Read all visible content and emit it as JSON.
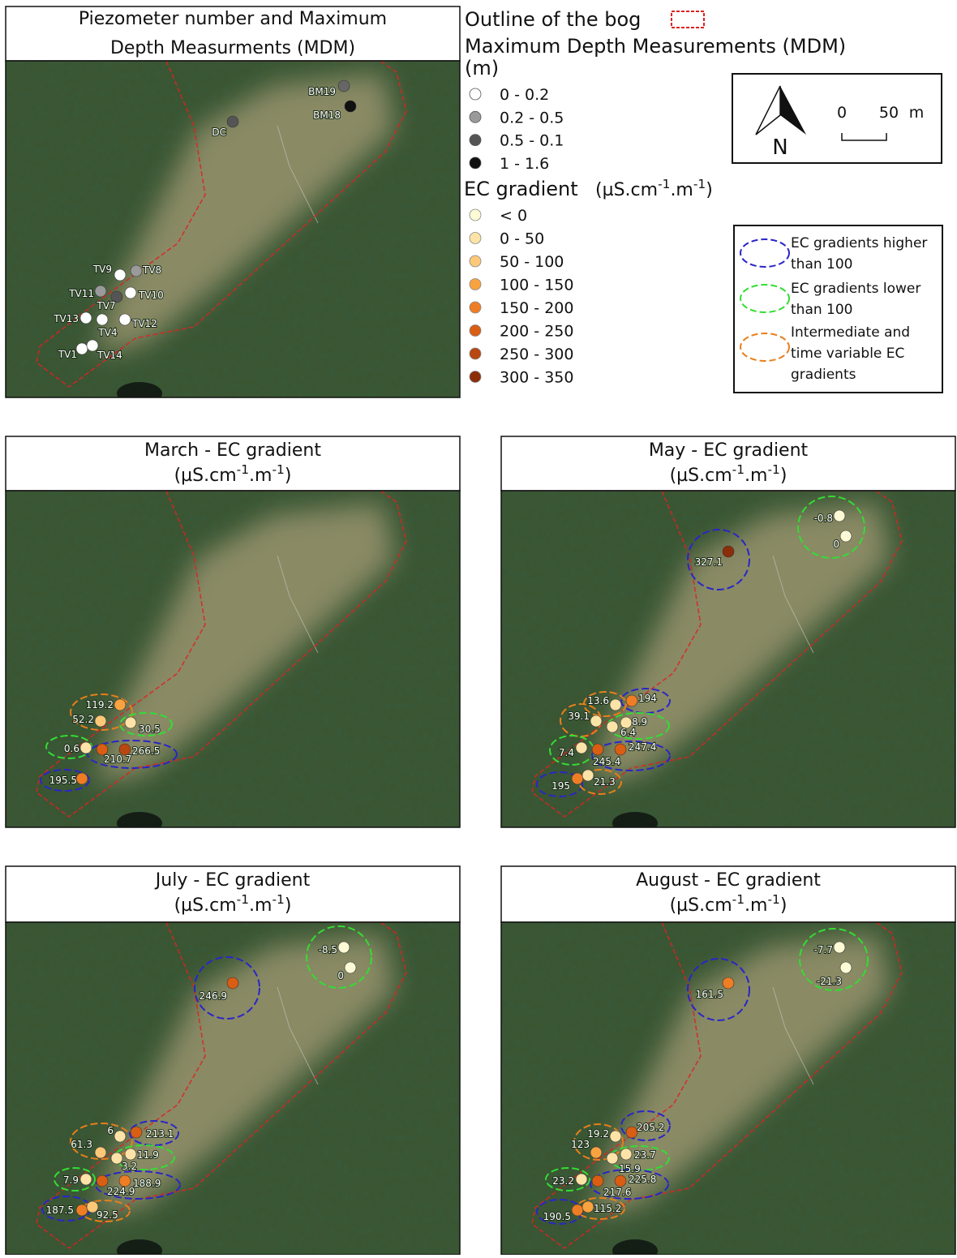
{
  "panels": [
    {
      "title_lines": [
        "Piezometer number and Maximum",
        "Depth Measurments (MDM)"
      ],
      "points": [
        {
          "label": "BM19",
          "color": "#666666"
        },
        {
          "label": "BM18",
          "color": "#111111"
        },
        {
          "label": "DC",
          "color": "#555555"
        },
        {
          "label": "TV9",
          "color": "#ffffff"
        },
        {
          "label": "TV8",
          "color": "#9a9a9a"
        },
        {
          "label": "TV11",
          "color": "#9a9a9a"
        },
        {
          "label": "TV10",
          "color": "#ffffff"
        },
        {
          "label": "TV7",
          "color": "#555555"
        },
        {
          "label": "TV13",
          "color": "#ffffff"
        },
        {
          "label": "TV4",
          "color": "#ffffff"
        },
        {
          "label": "TV12",
          "color": "#ffffff"
        },
        {
          "label": "TV1",
          "color": "#ffffff"
        },
        {
          "label": "TV14",
          "color": "#ffffff"
        }
      ]
    },
    {
      "title": "March - EC gradient",
      "unit": [
        "(µS.cm",
        "-1",
        ".m",
        "-1",
        ")"
      ],
      "points": [
        {
          "value": 119.2,
          "color": "#f9a340"
        },
        {
          "value": 52.2,
          "color": "#fdc877"
        },
        {
          "value": 30.5,
          "color": "#fde3a7"
        },
        {
          "value": 0.6,
          "color": "#fde3a7"
        },
        {
          "value": 210.7,
          "color": "#d95d12"
        },
        {
          "value": 266.5,
          "color": "#b94710"
        },
        {
          "value": 195.5,
          "color": "#ef7d24"
        }
      ]
    },
    {
      "title": "May - EC gradient",
      "unit": [
        "(µS.cm",
        "-1",
        ".m",
        "-1",
        ")"
      ],
      "points": [
        {
          "value": -0.8,
          "color": "#fdfbd6"
        },
        {
          "value": 0,
          "color": "#fdfbd6"
        },
        {
          "value": 327.1,
          "color": "#8c2d0a"
        },
        {
          "value": 13.6,
          "color": "#fde3a7"
        },
        {
          "value": 194,
          "color": "#ef7d24"
        },
        {
          "value": 39.1,
          "color": "#fde3a7"
        },
        {
          "value": 8.9,
          "color": "#fde3a7"
        },
        {
          "value": 6.4,
          "color": "#fde3a7"
        },
        {
          "value": 7.4,
          "color": "#fde3a7"
        },
        {
          "value": 245.4,
          "color": "#d95d12"
        },
        {
          "value": 247.4,
          "color": "#d95d12"
        },
        {
          "value": 195,
          "color": "#ef7d24"
        },
        {
          "value": 21.3,
          "color": "#fde3a7"
        }
      ]
    },
    {
      "title": "July - EC gradient",
      "unit": [
        "(µS.cm",
        "-1",
        ".m",
        "-1",
        ")"
      ],
      "points": [
        {
          "value": -8.5,
          "color": "#fdfbd6"
        },
        {
          "value": 0,
          "color": "#fdfbd6"
        },
        {
          "value": 246.9,
          "color": "#d95d12"
        },
        {
          "value": 6,
          "color": "#fde3a7"
        },
        {
          "value": 213.1,
          "color": "#d95d12"
        },
        {
          "value": 61.3,
          "color": "#fdc877"
        },
        {
          "value": 11.9,
          "color": "#fde3a7"
        },
        {
          "value": 3.2,
          "color": "#fde3a7"
        },
        {
          "value": 7.9,
          "color": "#fde3a7"
        },
        {
          "value": 224.9,
          "color": "#d95d12"
        },
        {
          "value": 188.9,
          "color": "#ef7d24"
        },
        {
          "value": 187.5,
          "color": "#ef7d24"
        },
        {
          "value": 92.5,
          "color": "#fdc877"
        }
      ]
    },
    {
      "title": "August - EC gradient",
      "unit": [
        "(µS.cm",
        "-1",
        ".m",
        "-1",
        ")"
      ],
      "points": [
        {
          "value": -7.7,
          "color": "#fdfbd6"
        },
        {
          "value": -21.3,
          "color": "#fdfbd6"
        },
        {
          "value": 161.5,
          "color": "#ef7d24"
        },
        {
          "value": 19.2,
          "color": "#fde3a7"
        },
        {
          "value": 205.2,
          "color": "#d95d12"
        },
        {
          "value": 123,
          "color": "#f9a340"
        },
        {
          "value": 23.7,
          "color": "#fde3a7"
        },
        {
          "value": 15.9,
          "color": "#fde3a7"
        },
        {
          "value": 23.2,
          "color": "#fde3a7"
        },
        {
          "value": 217.6,
          "color": "#d95d12"
        },
        {
          "value": 225.8,
          "color": "#d95d12"
        },
        {
          "value": 190.5,
          "color": "#ef7d24"
        },
        {
          "value": 115.2,
          "color": "#f9a340"
        }
      ]
    }
  ],
  "legend": {
    "outline_label": "Outline of the bog",
    "outline_color": "#dd2222",
    "mdm_title_lines": [
      "Maximum Depth Measurements (MDM)",
      "(m)"
    ],
    "mdm_classes": [
      {
        "label": "0 - 0.2",
        "color": "#ffffff"
      },
      {
        "label": "0.2 - 0.5",
        "color": "#9a9a9a"
      },
      {
        "label": "0.5 - 0.1",
        "color": "#555555"
      },
      {
        "label": "1 - 1.6",
        "color": "#111111"
      }
    ],
    "ec_title": "EC gradient",
    "ec_unit": [
      "(µS.cm",
      "-1",
      ".m",
      "-1",
      ")"
    ],
    "ec_classes": [
      {
        "label": "< 0",
        "color": "#fdfbd6"
      },
      {
        "label": "0 - 50",
        "color": "#fde3a7"
      },
      {
        "label": "50 - 100",
        "color": "#fdc877"
      },
      {
        "label": "100 - 150",
        "color": "#f9a340"
      },
      {
        "label": "150 - 200",
        "color": "#ef7d24"
      },
      {
        "label": "200 - 250",
        "color": "#d95d12"
      },
      {
        "label": "250 - 300",
        "color": "#b94710"
      },
      {
        "label": "300 - 350",
        "color": "#8c2d0a"
      }
    ]
  },
  "north": {
    "letter": "N",
    "scale_labels": [
      "0",
      "50",
      "m"
    ]
  },
  "ellipse_legend": [
    {
      "lines": [
        "EC gradients higher",
        "than 100"
      ],
      "color": "#2a25c8"
    },
    {
      "lines": [
        "EC gradients lower",
        "than 100"
      ],
      "color": "#33dd33"
    },
    {
      "lines": [
        "Intermediate and",
        "time variable EC",
        "gradients"
      ],
      "color": "#e87f1a"
    }
  ]
}
